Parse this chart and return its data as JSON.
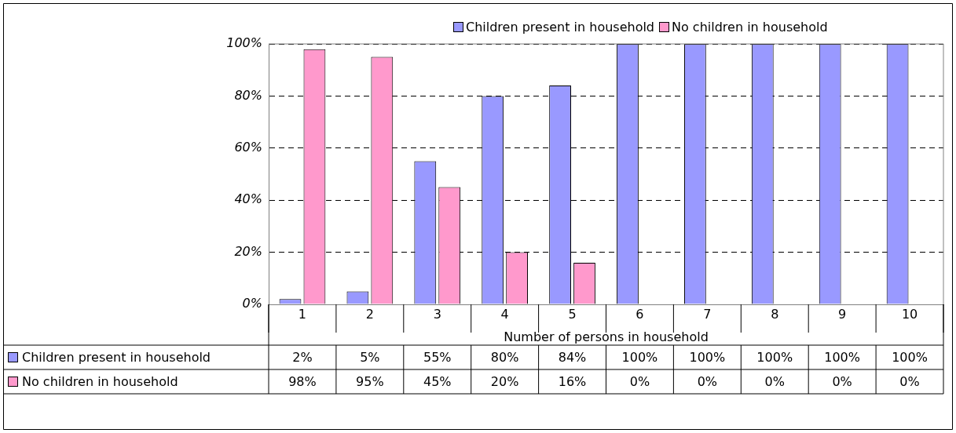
{
  "chart_data": {
    "type": "bar",
    "xlabel": "Number of persons in household",
    "categories": [
      "1",
      "2",
      "3",
      "4",
      "5",
      "6",
      "7",
      "8",
      "9",
      "10"
    ],
    "series": [
      {
        "name": "Children present in household",
        "color": "#9999ff",
        "values": [
          2,
          5,
          55,
          80,
          84,
          100,
          100,
          100,
          100,
          100
        ],
        "value_labels": [
          "2%",
          "5%",
          "55%",
          "80%",
          "84%",
          "100%",
          "100%",
          "100%",
          "100%",
          "100%"
        ]
      },
      {
        "name": "No children in household",
        "color": "#ff99cc",
        "values": [
          98,
          95,
          45,
          20,
          16,
          0,
          0,
          0,
          0,
          0
        ],
        "value_labels": [
          "98%",
          "95%",
          "45%",
          "20%",
          "16%",
          "0%",
          "0%",
          "0%",
          "0%",
          "0%"
        ]
      }
    ],
    "ylim": [
      0,
      100
    ],
    "yticks": [
      {
        "value": 0,
        "label": "0%"
      },
      {
        "value": 20,
        "label": "20%"
      },
      {
        "value": 40,
        "label": "40%"
      },
      {
        "value": 60,
        "label": "60%"
      },
      {
        "value": 80,
        "label": "80%"
      },
      {
        "value": 100,
        "label": "100%"
      }
    ],
    "grid": "y",
    "legend": "top"
  }
}
